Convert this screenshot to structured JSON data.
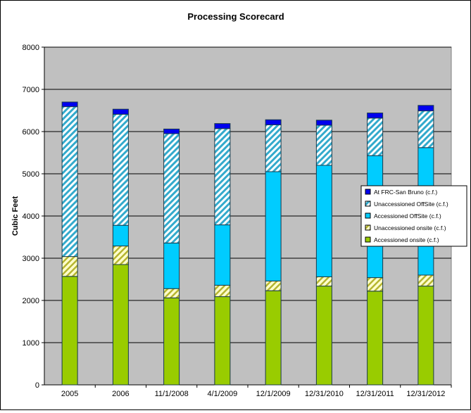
{
  "chart_data": {
    "type": "bar",
    "stacked": true,
    "title": "Processing Scorecard",
    "xlabel": "",
    "ylabel": "Cubic Feet",
    "ylim": [
      0,
      8000
    ],
    "yticks": [
      0,
      1000,
      2000,
      3000,
      4000,
      5000,
      6000,
      7000,
      8000
    ],
    "grid": true,
    "legend_position": "right",
    "categories": [
      "2005",
      "2006",
      "11/1/2008",
      "4/1/2009",
      "12/1/2009",
      "12/31/2010",
      "12/31/2011",
      "12/31/2012"
    ],
    "series": [
      {
        "name": "Accessioned onsite (c.f.)",
        "color": "#99cc00",
        "pattern": "solid",
        "values": [
          2570,
          2850,
          2060,
          2090,
          2230,
          2340,
          2220,
          2340
        ]
      },
      {
        "name": "Unaccessioned onsite (c.f.)",
        "color": "#cccc33",
        "pattern": "hatched",
        "values": [
          470,
          440,
          220,
          270,
          230,
          220,
          320,
          260
        ]
      },
      {
        "name": "Accessioned OffSite (c.f.)",
        "color": "#00ccff",
        "pattern": "solid",
        "values": [
          0,
          490,
          1080,
          1430,
          2590,
          2640,
          2890,
          3020
        ]
      },
      {
        "name": "Unaccessioned OffSite (c.f.)",
        "color": "#33aacc",
        "pattern": "hatched",
        "values": [
          3550,
          2630,
          2590,
          2280,
          1110,
          950,
          890,
          870
        ]
      },
      {
        "name": "At FRC-San Bruno (c.f.)",
        "color": "#0000ee",
        "pattern": "solid",
        "values": [
          110,
          120,
          110,
          120,
          120,
          120,
          120,
          130
        ]
      }
    ],
    "plot_background": "#c0c0c0"
  }
}
